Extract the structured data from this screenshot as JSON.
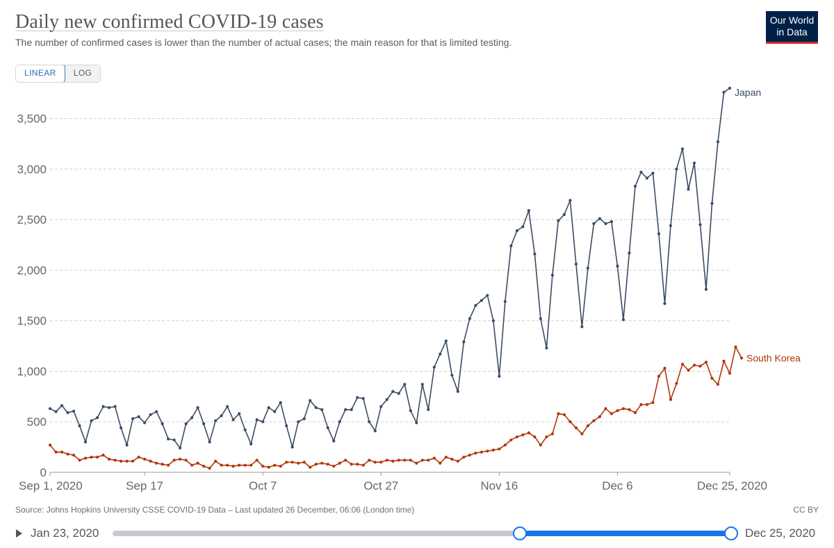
{
  "title": "Daily new confirmed COVID-19 cases",
  "subtitle": "The number of confirmed cases is lower than the number of actual cases; the main reason for that is limited testing.",
  "logo": {
    "line1": "Our World",
    "line2": "in Data"
  },
  "scale_toggle": {
    "linear_label": "LINEAR",
    "log_label": "LOG",
    "active": "LINEAR"
  },
  "source": "Source: Johns Hopkins University CSSE COVID-19 Data – Last updated 26 December, 06:06 (London time)",
  "license": "CC BY",
  "timeline": {
    "start_label": "Jan 23, 2020",
    "end_label": "Dec 25, 2020",
    "selection_start": 0.658,
    "selection_end": 1.0
  },
  "colors": {
    "japan": "#3b4c63",
    "south_korea": "#b13507",
    "grid": "#d0d0d0",
    "axis_text": "#666666"
  },
  "chart_data": {
    "type": "line",
    "x_start": "2020-09-01",
    "x_end": "2020-12-25",
    "x_ticks": [
      "Sep 1, 2020",
      "Sep 17",
      "Oct 7",
      "Oct 27",
      "Nov 16",
      "Dec 6",
      "Dec 25, 2020"
    ],
    "x_tick_dates": [
      "2020-09-01",
      "2020-09-17",
      "2020-10-07",
      "2020-10-27",
      "2020-11-16",
      "2020-12-06",
      "2020-12-25"
    ],
    "y_ticks": [
      "0",
      "500",
      "1,000",
      "1,500",
      "2,000",
      "2,500",
      "3,000",
      "3,500"
    ],
    "ylim": [
      0,
      3800
    ],
    "grid": "horizontal dashed",
    "legend": "line-end labels",
    "series": [
      {
        "name": "Japan",
        "values": [
          630,
          600,
          660,
          590,
          605,
          460,
          300,
          510,
          540,
          650,
          640,
          650,
          440,
          270,
          530,
          550,
          490,
          570,
          600,
          480,
          330,
          320,
          240,
          480,
          540,
          640,
          480,
          300,
          510,
          560,
          650,
          520,
          580,
          420,
          280,
          520,
          500,
          640,
          600,
          690,
          460,
          250,
          500,
          530,
          710,
          640,
          620,
          440,
          310,
          500,
          620,
          620,
          740,
          730,
          500,
          410,
          650,
          720,
          800,
          780,
          870,
          610,
          490,
          870,
          620,
          1040,
          1170,
          1300,
          960,
          800,
          1290,
          1520,
          1650,
          1700,
          1750,
          1500,
          950,
          1690,
          2240,
          2390,
          2430,
          2590,
          2160,
          1520,
          1230,
          1950,
          2490,
          2550,
          2690,
          2060,
          1440,
          2020,
          2460,
          2510,
          2460,
          2480,
          2040,
          1510,
          2170,
          2830,
          2970,
          2910,
          2960,
          2360,
          1670,
          2440,
          3000,
          3200,
          2800,
          3060,
          2450,
          1810,
          2660,
          3270,
          3760,
          3800
        ]
      },
      {
        "name": "South Korea",
        "values": [
          270,
          200,
          200,
          180,
          170,
          120,
          140,
          150,
          150,
          170,
          130,
          120,
          110,
          110,
          110,
          150,
          130,
          110,
          90,
          80,
          70,
          120,
          130,
          120,
          70,
          90,
          60,
          40,
          110,
          70,
          70,
          60,
          70,
          70,
          70,
          120,
          60,
          50,
          70,
          60,
          100,
          100,
          90,
          100,
          50,
          80,
          90,
          80,
          60,
          90,
          120,
          80,
          80,
          70,
          120,
          100,
          100,
          120,
          110,
          120,
          120,
          120,
          90,
          120,
          120,
          140,
          90,
          150,
          130,
          110,
          150,
          170,
          190,
          200,
          210,
          220,
          230,
          270,
          320,
          350,
          370,
          390,
          350,
          270,
          350,
          380,
          580,
          570,
          500,
          440,
          380,
          460,
          510,
          550,
          630,
          580,
          610,
          630,
          620,
          590,
          670,
          670,
          690,
          950,
          1030,
          720,
          880,
          1070,
          1010,
          1060,
          1050,
          1090,
          930,
          870,
          1100,
          980,
          1240,
          1130
        ]
      }
    ]
  }
}
